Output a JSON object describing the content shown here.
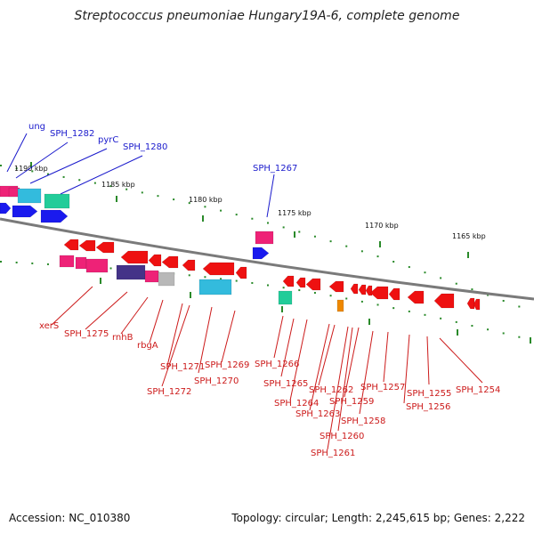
{
  "title": "Streptococcus pneumoniae Hungary19A-6, complete genome",
  "footer": {
    "accession": "Accession: NC_010380",
    "topology": "Topology: circular; Length: 2,245,615 bp; Genes: 2,222"
  },
  "colors": {
    "backbone": "#7a7a7a",
    "tick": "#2a8a2a",
    "forward_label": "#1a1acc",
    "reverse_label": "#cc1a1a",
    "gene_red": "#ee1111",
    "gene_blue": "#1a1aee",
    "gene_pink": "#ee2277",
    "gene_cyan": "#33bbdd",
    "gene_teal": "#22cc99",
    "gene_purple": "#443388",
    "gene_gray": "#b8b8b8",
    "gene_orange": "#ee8800"
  },
  "ticks": [
    "1190 kbp",
    "1185 kbp",
    "1180 kbp",
    "1175 kbp",
    "1170 kbp",
    "1165 kbp"
  ],
  "forward_labels": [
    "ung",
    "SPH_1282",
    "pyrC",
    "SPH_1280",
    "SPH_1267"
  ],
  "reverse_labels": [
    "xerS",
    "SPH_1275",
    "rnhB",
    "rbgA",
    "SPH_1271",
    "SPH_1272",
    "SPH_1270",
    "SPH_1269",
    "SPH_1266",
    "SPH_1265",
    "SPH_1264",
    "SPH_1263",
    "SPH_1262",
    "SPH_1261",
    "SPH_1260",
    "SPH_1259",
    "SPH_1258",
    "SPH_1257",
    "SPH_1256",
    "SPH_1255",
    "SPH_1254"
  ]
}
